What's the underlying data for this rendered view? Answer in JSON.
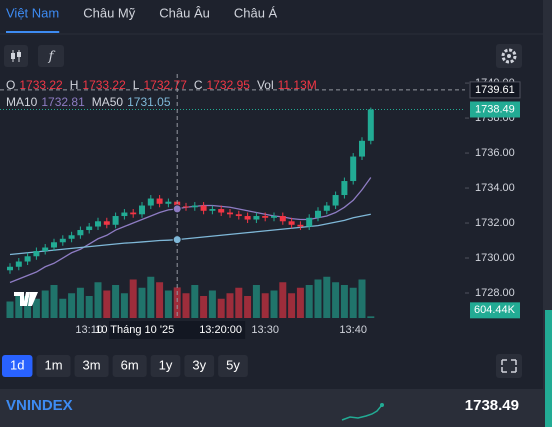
{
  "tabs": [
    {
      "label": "Việt Nam",
      "active": true
    },
    {
      "label": "Châu Mỹ",
      "active": false
    },
    {
      "label": "Châu Âu",
      "active": false
    },
    {
      "label": "Châu Á",
      "active": false
    }
  ],
  "ranges": [
    {
      "label": "1d",
      "active": true
    },
    {
      "label": "1m",
      "active": false
    },
    {
      "label": "3m",
      "active": false
    },
    {
      "label": "6m",
      "active": false
    },
    {
      "label": "1y",
      "active": false
    },
    {
      "label": "3y",
      "active": false
    },
    {
      "label": "5y",
      "active": false
    }
  ],
  "quote": {
    "symbol": "VNINDEX",
    "price": "1738.49"
  },
  "chart_data": {
    "type": "candlestick",
    "legend": [
      {
        "label": "O",
        "value": "1733.22"
      },
      {
        "label": "H",
        "value": "1733.22"
      },
      {
        "label": "L",
        "value": "1732.77"
      },
      {
        "label": "C",
        "value": "1732.95"
      },
      {
        "label": "Vol",
        "value": "11.13M"
      }
    ],
    "ma_legend": [
      {
        "label": "MA10",
        "value": "1732.81",
        "color": "#8e7cc3"
      },
      {
        "label": "MA50",
        "value": "1731.05",
        "color": "#7fb8d8"
      }
    ],
    "categories": [
      null,
      null,
      null,
      null,
      null,
      null,
      null,
      null,
      null,
      "13:10",
      null,
      null,
      null,
      null,
      null,
      null,
      null,
      null,
      null,
      null,
      null,
      null,
      null,
      null,
      null,
      null,
      null,
      null,
      null,
      "13:30",
      null,
      null,
      null,
      null,
      null,
      null,
      null,
      null,
      null,
      "13:40",
      null,
      null
    ],
    "crosshair": {
      "index": 19,
      "date": "10 Tháng 10 '25",
      "time": "13:20:00"
    },
    "open": [
      1729.3,
      1729.5,
      1729.8,
      1730.1,
      1730.4,
      1730.6,
      1730.9,
      1731.1,
      1731.3,
      1731.6,
      1731.8,
      1732.1,
      1731.9,
      1732.4,
      1732.6,
      1732.5,
      1733.0,
      1733.4,
      1733.1,
      1733.22,
      1732.95,
      1732.9,
      1733.0,
      1732.7,
      1732.8,
      1732.6,
      1732.5,
      1732.4,
      1732.2,
      1732.4,
      1732.3,
      1732.4,
      1732.1,
      1731.9,
      1731.8,
      1732.3,
      1732.7,
      1733.0,
      1733.6,
      1734.4,
      1735.8,
      1736.7
    ],
    "high": [
      1729.7,
      1730.0,
      1730.3,
      1730.6,
      1730.8,
      1731.1,
      1731.3,
      1731.5,
      1731.8,
      1732.0,
      1732.3,
      1732.3,
      1732.6,
      1732.8,
      1732.8,
      1733.2,
      1733.6,
      1733.6,
      1733.4,
      1733.22,
      1733.15,
      1733.2,
      1733.2,
      1733.0,
      1733.0,
      1732.8,
      1732.7,
      1732.6,
      1732.6,
      1732.6,
      1732.6,
      1732.6,
      1732.3,
      1732.1,
      1732.5,
      1732.9,
      1733.2,
      1733.8,
      1734.6,
      1736.0,
      1736.9,
      1738.6
    ],
    "low": [
      1729.1,
      1729.3,
      1729.6,
      1729.9,
      1730.2,
      1730.4,
      1730.7,
      1730.9,
      1731.1,
      1731.4,
      1731.6,
      1731.7,
      1731.7,
      1732.2,
      1732.3,
      1732.3,
      1732.8,
      1732.9,
      1732.9,
      1732.77,
      1732.7,
      1732.7,
      1732.5,
      1732.5,
      1732.4,
      1732.3,
      1732.2,
      1732.0,
      1732.0,
      1732.1,
      1732.1,
      1731.9,
      1731.7,
      1731.6,
      1731.6,
      1732.1,
      1732.5,
      1732.8,
      1733.4,
      1734.2,
      1735.6,
      1736.5
    ],
    "close": [
      1729.5,
      1729.8,
      1730.1,
      1730.4,
      1730.6,
      1730.9,
      1731.1,
      1731.3,
      1731.6,
      1731.8,
      1732.1,
      1731.9,
      1732.4,
      1732.6,
      1732.5,
      1733.0,
      1733.4,
      1733.1,
      1733.22,
      1732.95,
      1732.9,
      1733.0,
      1732.7,
      1732.8,
      1732.6,
      1732.5,
      1732.4,
      1732.2,
      1732.4,
      1732.3,
      1732.4,
      1732.1,
      1731.9,
      1731.8,
      1732.3,
      1732.7,
      1733.0,
      1733.6,
      1734.4,
      1735.8,
      1736.7,
      1738.49
    ],
    "ma10": [
      1728.6,
      1728.8,
      1729.0,
      1729.2,
      1729.5,
      1729.7,
      1730.0,
      1730.3,
      1730.5,
      1730.8,
      1731.1,
      1731.3,
      1731.6,
      1731.8,
      1732.0,
      1732.2,
      1732.4,
      1732.6,
      1732.75,
      1732.81,
      1732.9,
      1732.95,
      1733.0,
      1733.0,
      1732.95,
      1732.9,
      1732.8,
      1732.7,
      1732.6,
      1732.5,
      1732.4,
      1732.35,
      1732.25,
      1732.2,
      1732.2,
      1732.3,
      1732.4,
      1732.6,
      1732.9,
      1733.3,
      1733.9,
      1734.6
    ],
    "ma50": [
      1730.2,
      1730.25,
      1730.3,
      1730.35,
      1730.4,
      1730.45,
      1730.5,
      1730.55,
      1730.6,
      1730.65,
      1730.7,
      1730.75,
      1730.8,
      1730.85,
      1730.88,
      1730.92,
      1730.96,
      1731.0,
      1731.02,
      1731.05,
      1731.1,
      1731.15,
      1731.2,
      1731.25,
      1731.3,
      1731.35,
      1731.4,
      1731.45,
      1731.5,
      1731.55,
      1731.6,
      1731.65,
      1731.7,
      1731.75,
      1731.8,
      1731.85,
      1731.95,
      1732.05,
      1732.15,
      1732.3,
      1732.4,
      1732.5
    ],
    "volume": [
      6,
      9,
      8,
      7,
      10,
      12,
      7,
      9,
      11,
      8,
      13,
      10,
      12,
      9,
      14,
      11,
      15,
      13,
      10,
      11.13,
      9,
      12,
      8,
      10,
      7,
      9,
      11,
      8,
      12,
      9,
      10,
      13,
      9,
      11,
      12,
      14,
      15,
      13,
      12,
      11,
      14,
      0.60444
    ],
    "volume_label": "604.44K",
    "vlim": [
      0,
      20
    ],
    "session_high": 1739.61,
    "up_color": "#22ab94",
    "down_color": "#f23645",
    "ylim": [
      1727.6,
      1740.29
    ],
    "yticks": [
      {
        "value": 1728,
        "label": "1728.00"
      },
      {
        "value": 1730,
        "label": "1730.00"
      },
      {
        "value": 1732,
        "label": "1732.00"
      },
      {
        "value": 1734,
        "label": "1734.00"
      },
      {
        "value": 1736,
        "label": "1736.00"
      },
      {
        "value": 1738,
        "label": "1738.00"
      },
      {
        "value": 1740,
        "label": "1740.00"
      }
    ]
  }
}
